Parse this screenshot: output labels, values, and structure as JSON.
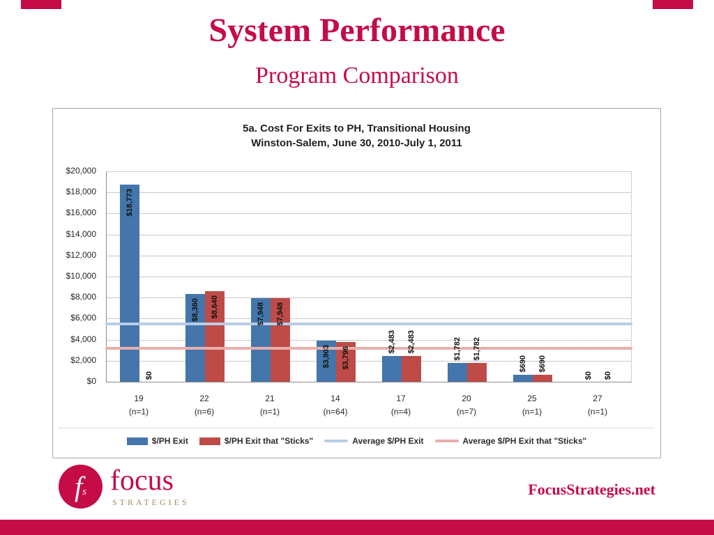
{
  "slide": {
    "title": "System Performance",
    "subtitle": "Program Comparison"
  },
  "footer": {
    "logo_mark_f": "f",
    "logo_mark_s": "s",
    "logo_name": "focus",
    "logo_subname": "STRATEGIES",
    "website": "FocusStrategies.net"
  },
  "colors": {
    "accent_crimson": "#C50C47",
    "logo_tan": "#A5895B",
    "bar_blue": "#4476AC",
    "bar_red": "#BE4B48",
    "avg_line_lightblue": "#B8CCE4",
    "avg_line_pink": "#E8AFAB"
  },
  "chart_data": {
    "type": "bar",
    "title": "5a. Cost For Exits to PH, Transitional Housing",
    "subtitle": "Winston-Salem, June 30, 2010-July 1, 2011",
    "categories": [
      "19",
      "22",
      "21",
      "14",
      "17",
      "20",
      "25",
      "27"
    ],
    "category_counts": [
      "(n=1)",
      "(n=6)",
      "(n=1)",
      "(n=64)",
      "(n=4)",
      "(n=7)",
      "(n=1)",
      "(n=1)"
    ],
    "series": [
      {
        "name": "$/PH Exit",
        "color": "#4476AC",
        "values": [
          18773,
          8360,
          7948,
          3903,
          2483,
          1782,
          690,
          0
        ],
        "labels": [
          "$18,773",
          "$8,360",
          "$7,948",
          "$3,903",
          "$2,483",
          "$1,782",
          "$690",
          "$0"
        ]
      },
      {
        "name": "$/PH Exit that \"Sticks\"",
        "color": "#BE4B48",
        "values": [
          0,
          8640,
          7948,
          3796,
          2483,
          1782,
          690,
          0
        ],
        "labels": [
          "$0",
          "$8,640",
          "$7,948",
          "$3,796",
          "$2,483",
          "$1,782",
          "$690",
          "$0"
        ]
      }
    ],
    "avg_lines": [
      {
        "name": "Average $/PH Exit",
        "color": "#B8CCE4",
        "value": 5492
      },
      {
        "name": "Average $/PH Exit that \"Sticks\"",
        "color": "#E8AFAB",
        "value": 3167
      }
    ],
    "ylim": [
      0,
      20000
    ],
    "yticks": [
      {
        "value": 0,
        "label": "$0"
      },
      {
        "value": 2000,
        "label": "$2,000"
      },
      {
        "value": 4000,
        "label": "$4,000"
      },
      {
        "value": 6000,
        "label": "$6,000"
      },
      {
        "value": 8000,
        "label": "$8,000"
      },
      {
        "value": 10000,
        "label": "$10,000"
      },
      {
        "value": 12000,
        "label": "$12,000"
      },
      {
        "value": 14000,
        "label": "$14,000"
      },
      {
        "value": 16000,
        "label": "$16,000"
      },
      {
        "value": 18000,
        "label": "$18,000"
      },
      {
        "value": 20000,
        "label": "$20,000"
      }
    ],
    "grid": true,
    "legend_position": "bottom"
  }
}
